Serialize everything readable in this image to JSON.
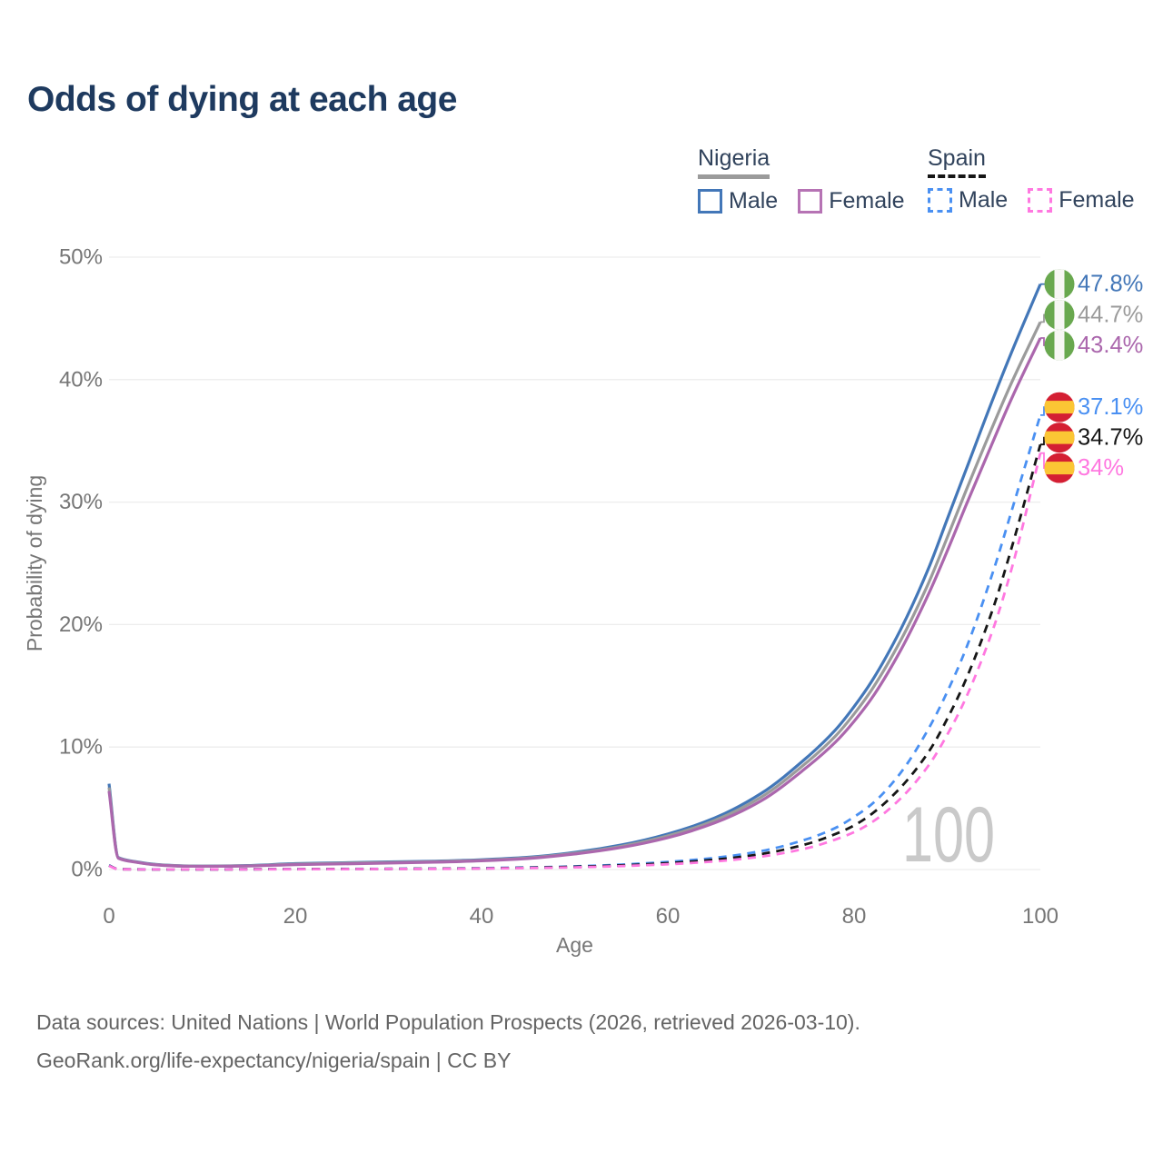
{
  "title": "Odds of dying at each age",
  "watermark": "100",
  "legend": {
    "groups": [
      {
        "country": "Nigeria",
        "line_style": "solid",
        "line_color": "#9b9b9b",
        "items": [
          {
            "label": "Male",
            "color": "#4377b8"
          },
          {
            "label": "Female",
            "color": "#b673b4"
          }
        ]
      },
      {
        "country": "Spain",
        "line_style": "dashed",
        "line_color": "#161616",
        "items": [
          {
            "label": "Male",
            "color": "#4a90f2"
          },
          {
            "label": "Female",
            "color": "#ff78e0"
          }
        ]
      }
    ]
  },
  "footer": {
    "line1": "Data sources: United Nations | World Population Prospects (2026, retrieved 2026-03-10).",
    "line2": "GeoRank.org/life-expectancy/nigeria/spain | CC BY"
  },
  "chart_data": {
    "type": "line",
    "title": "Odds of dying at each age",
    "xlabel": "Age",
    "ylabel": "Probability of dying",
    "xlim": [
      0,
      100
    ],
    "ylim": [
      0,
      50
    ],
    "x_ticks": [
      0,
      20,
      40,
      60,
      80,
      100
    ],
    "y_ticks": [
      "0%",
      "10%",
      "20%",
      "30%",
      "40%",
      "50%"
    ],
    "grid": "horizontal",
    "legend_position": "top-right",
    "colors": {
      "gridline": "#ededed",
      "tick_text": "#767676",
      "watermark": "#c9c9c9",
      "flag_green": "#69a84f",
      "flag_white": "#f7f7f4",
      "flag_red": "#d41f33",
      "flag_yellow": "#fbc634"
    },
    "series": [
      {
        "name": "Nigeria Male",
        "country": "Nigeria",
        "sex": "male",
        "flag": "nigeria",
        "color": "#4377b8",
        "dash": false,
        "end_label": "47.8%",
        "end_value": 47.8,
        "points": [
          [
            0,
            7.0
          ],
          [
            1,
            0.98
          ],
          [
            3,
            0.62
          ],
          [
            5,
            0.42
          ],
          [
            8,
            0.3
          ],
          [
            10,
            0.28
          ],
          [
            13,
            0.3
          ],
          [
            15,
            0.33
          ],
          [
            20,
            0.48
          ],
          [
            25,
            0.55
          ],
          [
            30,
            0.62
          ],
          [
            35,
            0.68
          ],
          [
            40,
            0.8
          ],
          [
            45,
            1.0
          ],
          [
            50,
            1.4
          ],
          [
            55,
            2.0
          ],
          [
            60,
            2.9
          ],
          [
            65,
            4.2
          ],
          [
            70,
            6.2
          ],
          [
            75,
            9.2
          ],
          [
            78,
            11.4
          ],
          [
            80,
            13.3
          ],
          [
            82,
            15.5
          ],
          [
            85,
            19.6
          ],
          [
            88,
            24.6
          ],
          [
            90,
            28.6
          ],
          [
            92,
            32.6
          ],
          [
            95,
            38.6
          ],
          [
            97,
            42.4
          ],
          [
            100,
            47.8
          ]
        ]
      },
      {
        "name": "Nigeria",
        "country": "Nigeria",
        "sex": "both",
        "flag": "nigeria",
        "color": "#9b9b9b",
        "dash": false,
        "end_label": "44.7%",
        "end_value": 44.7,
        "points": [
          [
            0,
            6.7
          ],
          [
            1,
            0.95
          ],
          [
            3,
            0.6
          ],
          [
            5,
            0.4
          ],
          [
            8,
            0.29
          ],
          [
            10,
            0.27
          ],
          [
            13,
            0.29
          ],
          [
            15,
            0.31
          ],
          [
            20,
            0.44
          ],
          [
            25,
            0.51
          ],
          [
            30,
            0.58
          ],
          [
            35,
            0.64
          ],
          [
            40,
            0.75
          ],
          [
            45,
            0.95
          ],
          [
            50,
            1.33
          ],
          [
            55,
            1.9
          ],
          [
            60,
            2.75
          ],
          [
            65,
            4.0
          ],
          [
            70,
            5.9
          ],
          [
            75,
            8.8
          ],
          [
            78,
            10.9
          ],
          [
            80,
            12.7
          ],
          [
            82,
            14.8
          ],
          [
            85,
            18.7
          ],
          [
            88,
            23.4
          ],
          [
            90,
            27.1
          ],
          [
            92,
            30.9
          ],
          [
            95,
            36.4
          ],
          [
            97,
            39.9
          ],
          [
            100,
            44.7
          ]
        ]
      },
      {
        "name": "Nigeria Female",
        "country": "Nigeria",
        "sex": "female",
        "flag": "nigeria",
        "color": "#ab67ad",
        "dash": false,
        "end_label": "43.4%",
        "end_value": 43.4,
        "points": [
          [
            0,
            6.4
          ],
          [
            1,
            0.92
          ],
          [
            3,
            0.58
          ],
          [
            5,
            0.38
          ],
          [
            8,
            0.27
          ],
          [
            10,
            0.26
          ],
          [
            13,
            0.27
          ],
          [
            15,
            0.29
          ],
          [
            20,
            0.4
          ],
          [
            25,
            0.46
          ],
          [
            30,
            0.53
          ],
          [
            35,
            0.6
          ],
          [
            40,
            0.71
          ],
          [
            45,
            0.9
          ],
          [
            50,
            1.27
          ],
          [
            55,
            1.8
          ],
          [
            60,
            2.6
          ],
          [
            65,
            3.8
          ],
          [
            70,
            5.6
          ],
          [
            75,
            8.4
          ],
          [
            78,
            10.4
          ],
          [
            80,
            12.1
          ],
          [
            82,
            14.1
          ],
          [
            85,
            17.9
          ],
          [
            88,
            22.5
          ],
          [
            90,
            26.0
          ],
          [
            92,
            29.7
          ],
          [
            95,
            35.1
          ],
          [
            97,
            38.6
          ],
          [
            100,
            43.4
          ]
        ]
      },
      {
        "name": "Spain Male",
        "country": "Spain",
        "sex": "male",
        "flag": "spain",
        "color": "#4a90f2",
        "dash": true,
        "end_label": "37.1%",
        "end_value": 37.1,
        "points": [
          [
            0,
            0.35
          ],
          [
            1,
            0.03
          ],
          [
            5,
            0.012
          ],
          [
            10,
            0.01
          ],
          [
            15,
            0.025
          ],
          [
            20,
            0.04
          ],
          [
            25,
            0.05
          ],
          [
            30,
            0.06
          ],
          [
            35,
            0.08
          ],
          [
            40,
            0.11
          ],
          [
            45,
            0.17
          ],
          [
            50,
            0.26
          ],
          [
            55,
            0.4
          ],
          [
            60,
            0.62
          ],
          [
            65,
            0.95
          ],
          [
            70,
            1.5
          ],
          [
            75,
            2.5
          ],
          [
            78,
            3.4
          ],
          [
            80,
            4.3
          ],
          [
            82,
            5.4
          ],
          [
            85,
            7.9
          ],
          [
            88,
            11.5
          ],
          [
            90,
            14.5
          ],
          [
            92,
            18.0
          ],
          [
            95,
            24.5
          ],
          [
            97,
            29.5
          ],
          [
            100,
            37.1
          ]
        ]
      },
      {
        "name": "Spain",
        "country": "Spain",
        "sex": "both",
        "flag": "spain",
        "color": "#161616",
        "dash": true,
        "end_label": "34.7%",
        "end_value": 34.7,
        "points": [
          [
            0,
            0.32
          ],
          [
            1,
            0.027
          ],
          [
            5,
            0.01
          ],
          [
            10,
            0.009
          ],
          [
            15,
            0.02
          ],
          [
            20,
            0.032
          ],
          [
            25,
            0.042
          ],
          [
            30,
            0.052
          ],
          [
            35,
            0.07
          ],
          [
            40,
            0.095
          ],
          [
            45,
            0.15
          ],
          [
            50,
            0.22
          ],
          [
            55,
            0.34
          ],
          [
            60,
            0.52
          ],
          [
            65,
            0.8
          ],
          [
            70,
            1.26
          ],
          [
            75,
            2.1
          ],
          [
            78,
            2.9
          ],
          [
            80,
            3.6
          ],
          [
            82,
            4.6
          ],
          [
            85,
            6.7
          ],
          [
            88,
            9.6
          ],
          [
            90,
            12.3
          ],
          [
            92,
            15.5
          ],
          [
            95,
            21.5
          ],
          [
            97,
            26.5
          ],
          [
            100,
            34.7
          ]
        ]
      },
      {
        "name": "Spain Female",
        "country": "Spain",
        "sex": "female",
        "flag": "spain",
        "color": "#ff78e0",
        "dash": true,
        "end_label": "34%",
        "end_value": 34,
        "points": [
          [
            0,
            0.3
          ],
          [
            1,
            0.024
          ],
          [
            5,
            0.009
          ],
          [
            10,
            0.008
          ],
          [
            15,
            0.016
          ],
          [
            20,
            0.025
          ],
          [
            25,
            0.033
          ],
          [
            30,
            0.042
          ],
          [
            35,
            0.055
          ],
          [
            40,
            0.08
          ],
          [
            45,
            0.12
          ],
          [
            50,
            0.18
          ],
          [
            55,
            0.28
          ],
          [
            60,
            0.43
          ],
          [
            65,
            0.66
          ],
          [
            70,
            1.05
          ],
          [
            75,
            1.75
          ],
          [
            78,
            2.45
          ],
          [
            80,
            3.05
          ],
          [
            82,
            3.9
          ],
          [
            85,
            5.8
          ],
          [
            88,
            8.5
          ],
          [
            90,
            11.0
          ],
          [
            92,
            14.0
          ],
          [
            95,
            19.8
          ],
          [
            97,
            24.8
          ],
          [
            100,
            34.0
          ]
        ]
      }
    ]
  }
}
